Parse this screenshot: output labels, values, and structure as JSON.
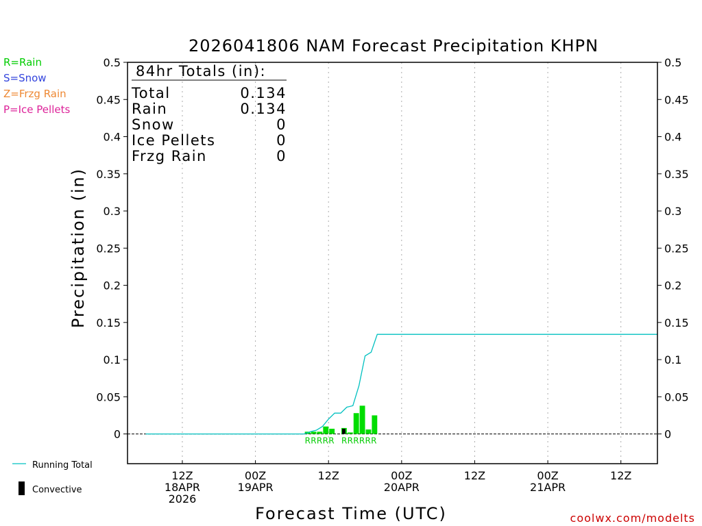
{
  "chart_data": {
    "type": "bar+line",
    "title": "2026041806 NAM Forecast Precipitation KHPN",
    "xlabel": "Forecast Time (UTC)",
    "ylabel": "Precipitation (in)",
    "ylim": [
      -0.04,
      0.5
    ],
    "yticks": [
      0,
      0.05,
      0.1,
      0.15,
      0.2,
      0.25,
      0.3,
      0.35,
      0.4,
      0.45,
      0.5
    ],
    "ytick_labels": [
      "0",
      "0.05",
      "0.1",
      "0.15",
      "0.2",
      "0.25",
      "0.3",
      "0.35",
      "0.4",
      "0.45",
      "0.5"
    ],
    "xlim_hours": [
      -3,
      84
    ],
    "x_gridlines_hours": [
      6,
      18,
      30,
      42,
      54,
      66,
      78
    ],
    "xticks": [
      {
        "hour": 6,
        "lines": [
          "12Z",
          "18APR",
          "2026"
        ]
      },
      {
        "hour": 18,
        "lines": [
          "00Z",
          "19APR"
        ]
      },
      {
        "hour": 30,
        "lines": [
          "12Z"
        ]
      },
      {
        "hour": 42,
        "lines": [
          "00Z",
          "20APR"
        ]
      },
      {
        "hour": 54,
        "lines": [
          "12Z"
        ]
      },
      {
        "hour": 66,
        "lines": [
          "00Z",
          "21APR"
        ]
      },
      {
        "hour": 78,
        "lines": [
          "12Z"
        ]
      }
    ],
    "running_total": {
      "name": "Running Total",
      "color": "#00c0c0",
      "hours": [
        0,
        26,
        27,
        28,
        29,
        30,
        31,
        32,
        33,
        34,
        35,
        36,
        37,
        38,
        39,
        84
      ],
      "values": [
        0,
        0,
        0.003,
        0.005,
        0.01,
        0.02,
        0.028,
        0.028,
        0.036,
        0.038,
        0.065,
        0.105,
        0.11,
        0.134,
        0.134,
        0.134
      ]
    },
    "hourly_precip": {
      "color": "#00dd00",
      "convective_color": "#000000",
      "bars": [
        {
          "hour": 27,
          "value": 0.003,
          "type": "R"
        },
        {
          "hour": 28,
          "value": 0.003,
          "type": "R"
        },
        {
          "hour": 29,
          "value": 0.003,
          "type": "R"
        },
        {
          "hour": 30,
          "value": 0.01,
          "type": "R"
        },
        {
          "hour": 31,
          "value": 0.007,
          "type": "R"
        },
        {
          "hour": 33,
          "value": 0.008,
          "type": "R",
          "convective": 0.007
        },
        {
          "hour": 34,
          "value": 0.002,
          "type": "R"
        },
        {
          "hour": 35,
          "value": 0.028,
          "type": "R"
        },
        {
          "hour": 36,
          "value": 0.038,
          "type": "R"
        },
        {
          "hour": 37,
          "value": 0.006,
          "type": "R"
        },
        {
          "hour": 38,
          "value": 0.025,
          "type": "R"
        }
      ],
      "ptype_label_groups": [
        {
          "start_hour": 27,
          "text": "RRRRR"
        },
        {
          "start_hour": 33,
          "text": "RRRRRR"
        }
      ]
    },
    "totals_box": {
      "header": "84hr Totals (in):",
      "rows": [
        {
          "label": "Total",
          "value": "0.134"
        },
        {
          "label": "Rain",
          "value": "0.134"
        },
        {
          "label": "Snow",
          "value": "0"
        },
        {
          "label": "Ice Pellets",
          "value": "0"
        },
        {
          "label": "Frzg Rain",
          "value": "0"
        }
      ]
    },
    "ptype_legend": [
      {
        "text": "R=Rain",
        "color": "#00cc00"
      },
      {
        "text": "S=Snow",
        "color": "#3344dd"
      },
      {
        "text": "Z=Frzg Rain",
        "color": "#ee8833"
      },
      {
        "text": "P=Ice Pellets",
        "color": "#dd2299"
      }
    ],
    "series_legend": {
      "running_total": "Running Total",
      "convective": "Convective"
    },
    "credit": "coolwx.com/modelts",
    "credit_color": "#cc0000"
  }
}
